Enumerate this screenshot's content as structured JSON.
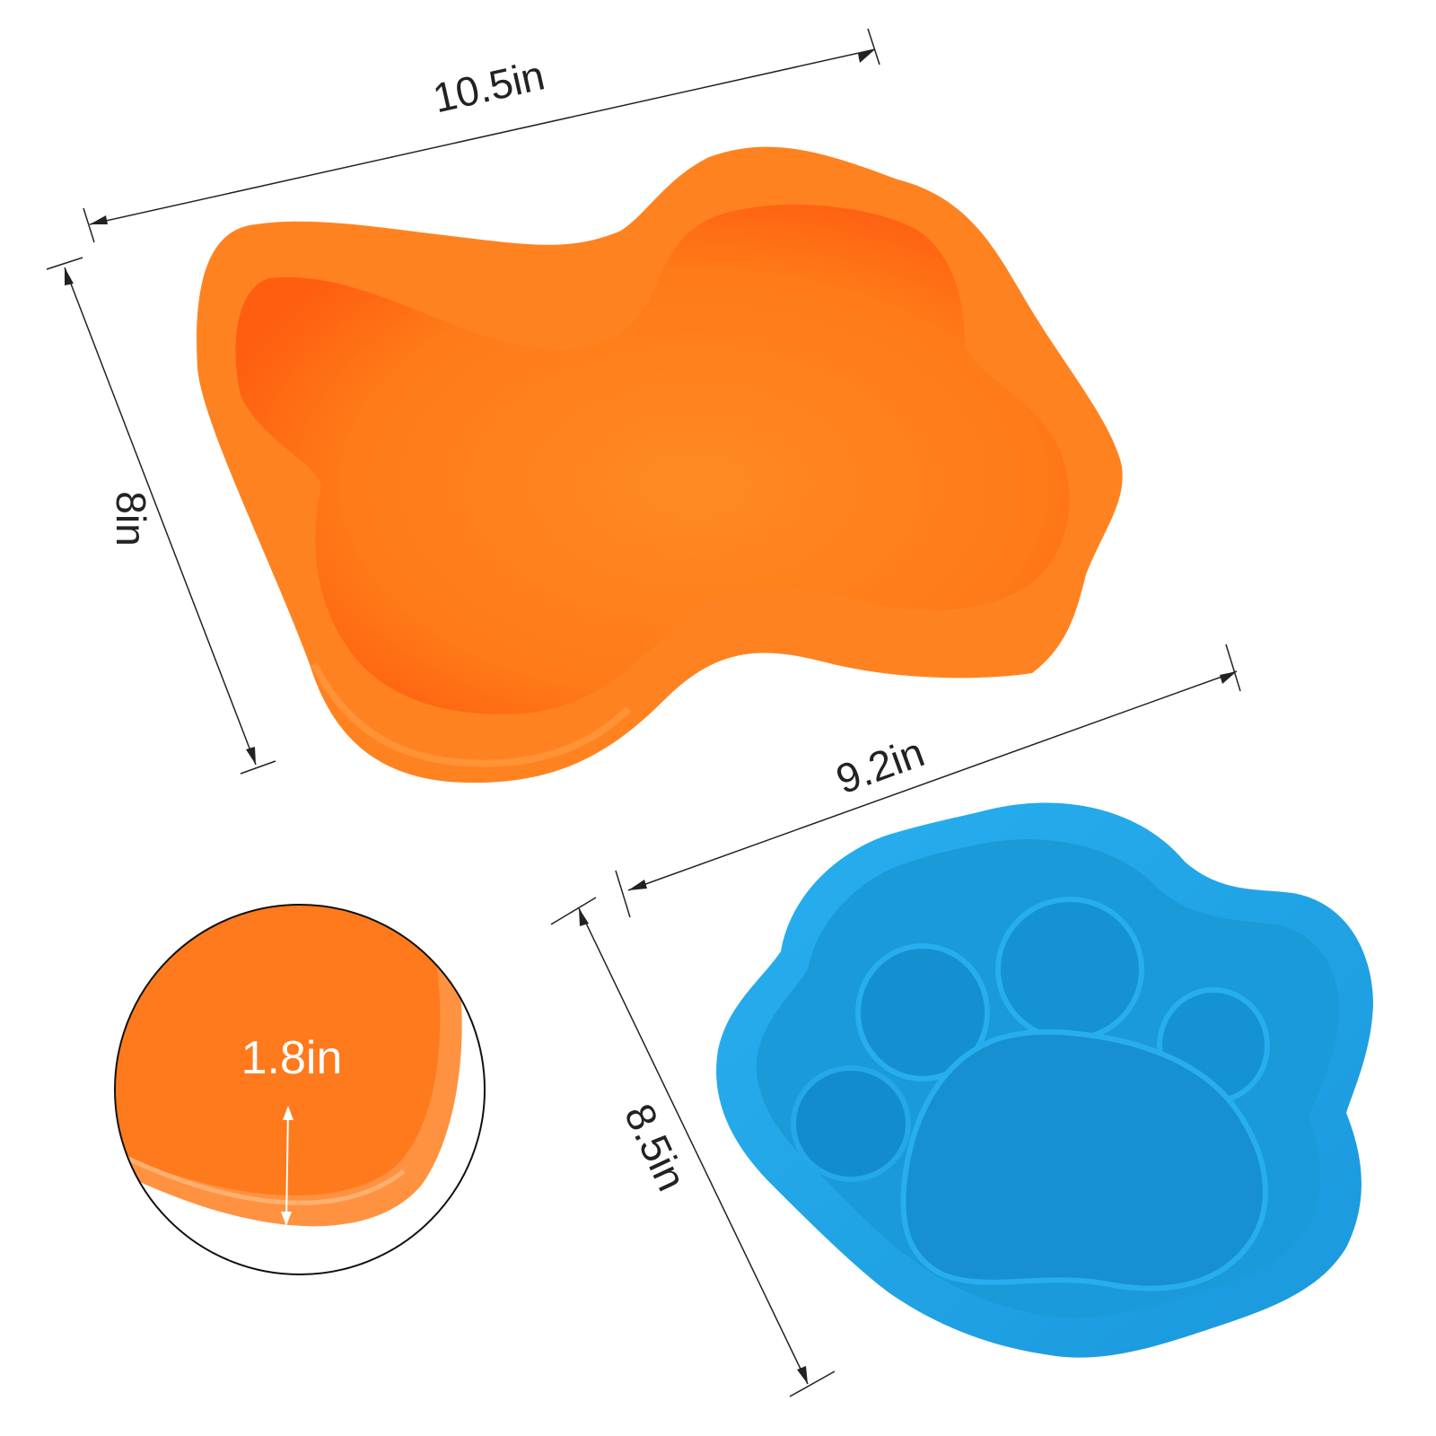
{
  "dimensions": {
    "bone_length": "10.5in",
    "bone_width": "8in",
    "bone_depth": "1.8in",
    "paw_length": "9.2in",
    "paw_width": "8.5in"
  },
  "colors": {
    "bone_orange": "#ff8220",
    "bone_orange_dark": "#ff5e10",
    "paw_blue": "#1ea4e4",
    "paw_blue_dark": "#1288c6",
    "line": "#222222"
  }
}
